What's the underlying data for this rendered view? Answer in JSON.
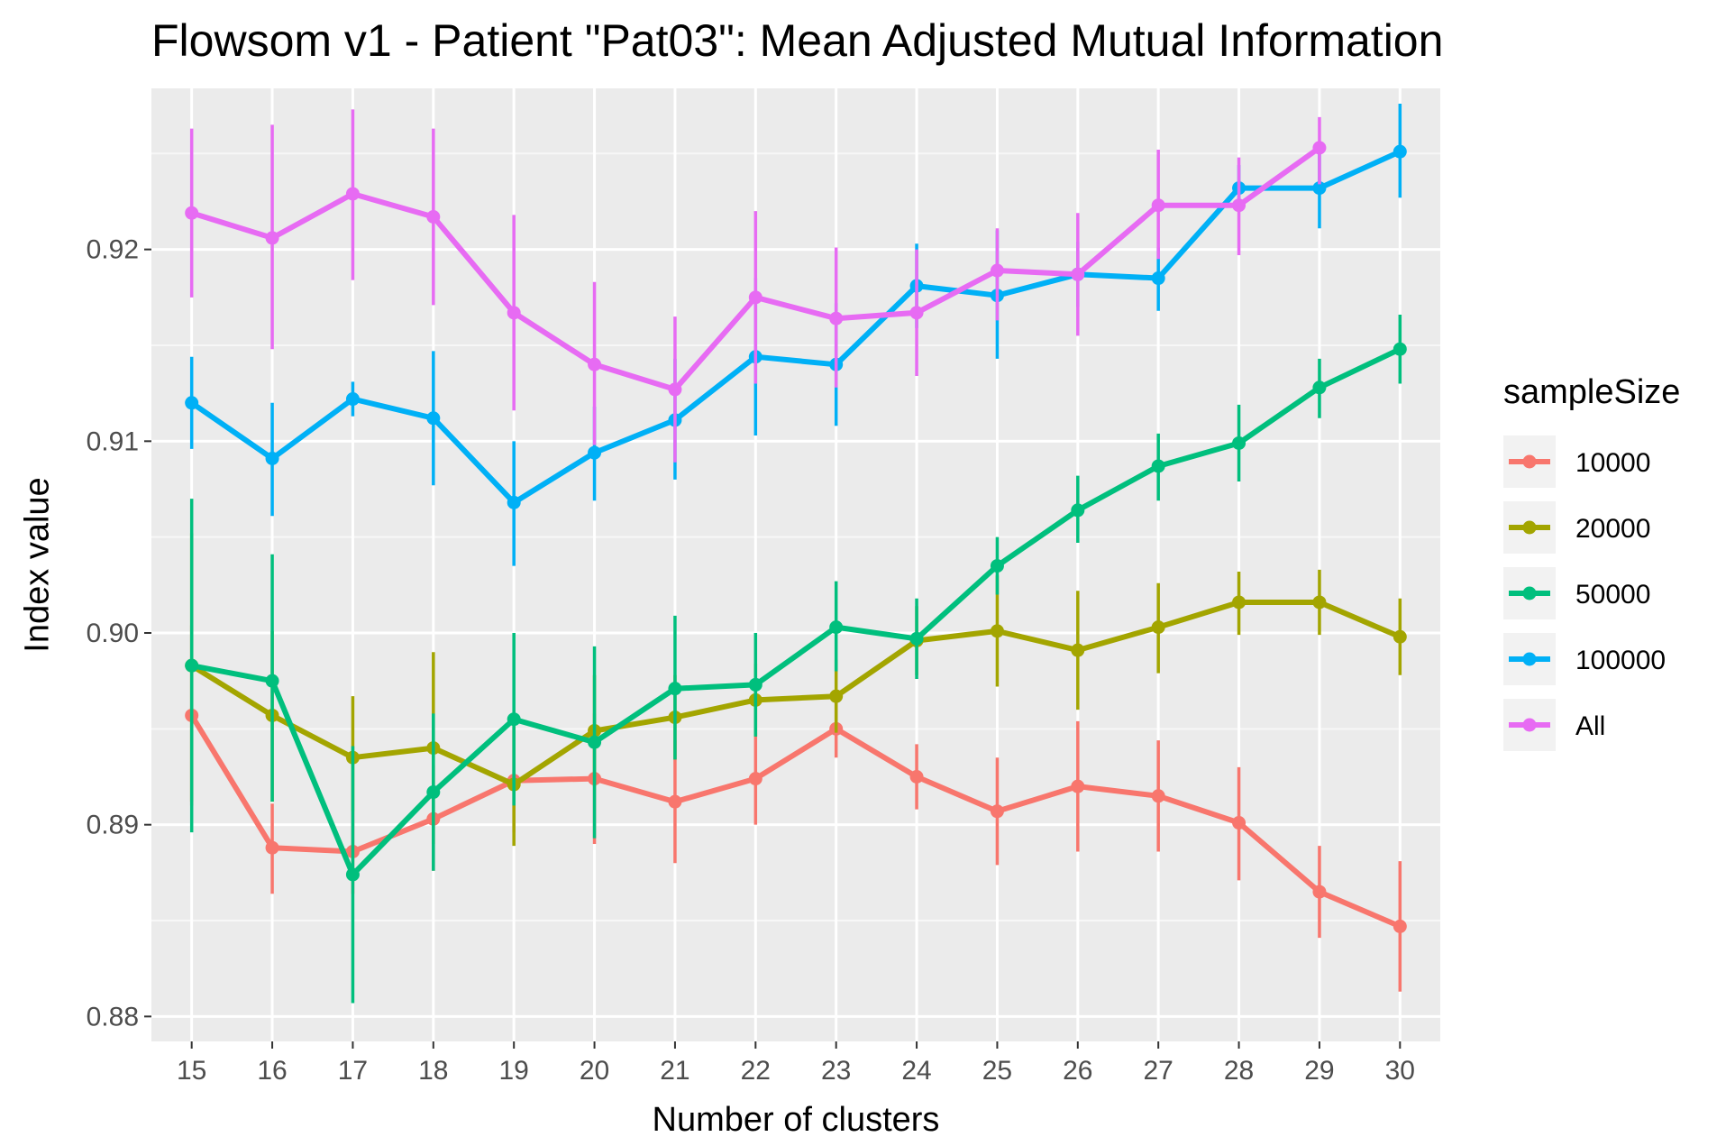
{
  "chart_data": {
    "type": "line",
    "title": "Flowsom v1 - Patient \"Pat03\": Mean Adjusted Mutual Information",
    "xlabel": "Number of clusters",
    "ylabel": "Index value",
    "categories": [
      "15",
      "16",
      "17",
      "18",
      "19",
      "20",
      "21",
      "22",
      "23",
      "24",
      "25",
      "26",
      "27",
      "28",
      "29",
      "30"
    ],
    "ylim": [
      0.8787,
      0.9284
    ],
    "yticks": [
      0.88,
      0.89,
      0.9,
      0.91,
      0.92
    ],
    "ytick_labels": [
      "0.88",
      "0.89",
      "0.90",
      "0.91",
      "0.92"
    ],
    "grid": true,
    "legend": {
      "title": "sampleSize",
      "position": "right"
    },
    "series": [
      {
        "name": "10000",
        "color": "#F8766D",
        "values": [
          0.8957,
          0.8888,
          0.8886,
          0.8903,
          0.8923,
          0.8924,
          0.8912,
          0.8924,
          0.895,
          0.8925,
          0.8907,
          0.892,
          0.8915,
          0.8901,
          0.8865,
          0.8847
        ],
        "lower": [
          0.891,
          0.8864,
          0.8864,
          0.8876,
          0.8896,
          0.889,
          0.888,
          0.89,
          0.8935,
          0.8908,
          0.8879,
          0.8886,
          0.8886,
          0.8871,
          0.8841,
          0.8813
        ],
        "upper": [
          0.9004,
          0.8911,
          0.8907,
          0.8931,
          0.8951,
          0.8958,
          0.8944,
          0.8948,
          0.8966,
          0.8942,
          0.8935,
          0.8954,
          0.8944,
          0.893,
          0.8889,
          0.8881
        ]
      },
      {
        "name": "20000",
        "color": "#A3A500",
        "values": [
          0.8983,
          0.8957,
          0.8935,
          0.894,
          0.8921,
          0.8949,
          0.8956,
          0.8965,
          0.8967,
          0.8996,
          0.9001,
          0.8991,
          0.9003,
          0.9016,
          0.9016,
          0.8998
        ],
        "lower": [
          0.8912,
          0.8912,
          0.8907,
          0.889,
          0.8889,
          0.892,
          0.8934,
          0.8946,
          0.8948,
          0.8978,
          0.8972,
          0.896,
          0.8979,
          0.8999,
          0.8999,
          0.8978
        ],
        "upper": [
          0.9052,
          0.9001,
          0.8967,
          0.899,
          0.8953,
          0.8978,
          0.8978,
          0.8984,
          0.8986,
          0.9014,
          0.903,
          0.9022,
          0.9026,
          0.9032,
          0.9033,
          0.9018
        ]
      },
      {
        "name": "50000",
        "color": "#00BF7D",
        "values": [
          0.8983,
          0.8975,
          0.8874,
          0.8917,
          0.8955,
          0.8943,
          0.8971,
          0.8973,
          0.9003,
          0.8997,
          0.9035,
          0.9064,
          0.9087,
          0.9099,
          0.9128,
          0.9148
        ],
        "lower": [
          0.8896,
          0.8912,
          0.8807,
          0.8876,
          0.891,
          0.8893,
          0.8934,
          0.8946,
          0.898,
          0.8976,
          0.902,
          0.9047,
          0.9069,
          0.9079,
          0.9112,
          0.913
        ],
        "upper": [
          0.907,
          0.9041,
          0.8941,
          0.8958,
          0.9,
          0.8993,
          0.9009,
          0.9,
          0.9027,
          0.9018,
          0.905,
          0.9082,
          0.9104,
          0.9119,
          0.9143,
          0.9166
        ]
      },
      {
        "name": "100000",
        "color": "#00B0F6",
        "values": [
          0.912,
          0.9091,
          0.9122,
          0.9112,
          0.9068,
          0.9094,
          0.9111,
          0.9144,
          0.914,
          0.9181,
          0.9176,
          0.9187,
          0.9185,
          0.9232,
          0.9232,
          0.9251
        ],
        "lower": [
          0.9096,
          0.9061,
          0.9113,
          0.9077,
          0.9035,
          0.9069,
          0.908,
          0.9103,
          0.9108,
          0.9159,
          0.9143,
          0.917,
          0.9168,
          0.922,
          0.9211,
          0.9227
        ],
        "upper": [
          0.9144,
          0.912,
          0.9131,
          0.9147,
          0.91,
          0.9118,
          0.9143,
          0.9185,
          0.9172,
          0.9203,
          0.921,
          0.9204,
          0.9201,
          0.9244,
          0.9253,
          0.9276
        ]
      },
      {
        "name": "All",
        "color": "#E76BF3",
        "values": [
          0.9219,
          0.9206,
          0.9229,
          0.9217,
          0.9167,
          0.914,
          0.9127,
          0.9175,
          0.9164,
          0.9167,
          0.9189,
          0.9187,
          0.9223,
          0.9223,
          0.9253,
          null
        ],
        "lower": [
          0.9175,
          0.9148,
          0.9184,
          0.9171,
          0.9116,
          0.9098,
          0.9089,
          0.913,
          0.9128,
          0.9134,
          0.9163,
          0.9155,
          0.9195,
          0.9197,
          0.9234,
          null
        ],
        "upper": [
          0.9263,
          0.9265,
          0.9273,
          0.9263,
          0.9218,
          0.9183,
          0.9165,
          0.922,
          0.9201,
          0.92,
          0.9211,
          0.9219,
          0.9252,
          0.9248,
          0.9269,
          null
        ]
      }
    ]
  }
}
